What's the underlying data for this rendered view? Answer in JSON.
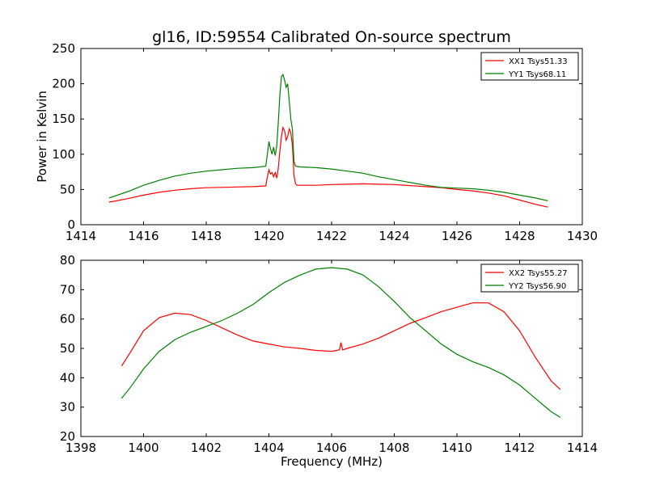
{
  "figure": {
    "title": "gl16, ID:59554 Calibrated On-source spectrum",
    "ylabel": "Power in Kelvin",
    "xlabel": "Frequency (MHz)"
  },
  "chart_data": [
    {
      "type": "line",
      "xlim": [
        1414,
        1430
      ],
      "ylim": [
        0,
        250
      ],
      "xticks": [
        1414,
        1416,
        1418,
        1420,
        1422,
        1424,
        1426,
        1428,
        1430
      ],
      "yticks": [
        0,
        50,
        100,
        150,
        200,
        250
      ],
      "legend_position": "top-right",
      "series": [
        {
          "name": "XX1 Tsys51.33",
          "color": "#ff0000",
          "points": [
            [
              1414.9,
              32
            ],
            [
              1415.5,
              37
            ],
            [
              1416.0,
              42
            ],
            [
              1416.5,
              46
            ],
            [
              1417.0,
              49
            ],
            [
              1417.5,
              51
            ],
            [
              1418.0,
              52.5
            ],
            [
              1418.5,
              53
            ],
            [
              1419.0,
              53.5
            ],
            [
              1419.5,
              54
            ],
            [
              1419.9,
              55
            ],
            [
              1419.95,
              68
            ],
            [
              1420.0,
              78
            ],
            [
              1420.05,
              72
            ],
            [
              1420.1,
              74
            ],
            [
              1420.15,
              68
            ],
            [
              1420.2,
              74
            ],
            [
              1420.25,
              66
            ],
            [
              1420.3,
              80
            ],
            [
              1420.35,
              105
            ],
            [
              1420.4,
              125
            ],
            [
              1420.45,
              138
            ],
            [
              1420.5,
              133
            ],
            [
              1420.55,
              120
            ],
            [
              1420.6,
              125
            ],
            [
              1420.65,
              136
            ],
            [
              1420.7,
              130
            ],
            [
              1420.75,
              112
            ],
            [
              1420.8,
              70
            ],
            [
              1420.85,
              58
            ],
            [
              1420.9,
              56
            ],
            [
              1421.5,
              56
            ],
            [
              1422.0,
              57
            ],
            [
              1422.5,
              57.5
            ],
            [
              1423.0,
              58
            ],
            [
              1423.5,
              57.5
            ],
            [
              1424.0,
              57
            ],
            [
              1424.5,
              55.5
            ],
            [
              1425.0,
              54
            ],
            [
              1425.5,
              52.5
            ],
            [
              1426.0,
              50
            ],
            [
              1426.5,
              48
            ],
            [
              1427.0,
              45
            ],
            [
              1427.5,
              41
            ],
            [
              1428.0,
              35
            ],
            [
              1428.5,
              29
            ],
            [
              1428.9,
              25
            ]
          ]
        },
        {
          "name": "YY1 Tsys68.11",
          "color": "#008000",
          "points": [
            [
              1414.9,
              38
            ],
            [
              1415.5,
              47
            ],
            [
              1416.0,
              56
            ],
            [
              1416.5,
              63
            ],
            [
              1417.0,
              69
            ],
            [
              1417.5,
              73
            ],
            [
              1418.0,
              76
            ],
            [
              1418.5,
              78
            ],
            [
              1419.0,
              80
            ],
            [
              1419.5,
              81
            ],
            [
              1419.9,
              83
            ],
            [
              1419.95,
              100
            ],
            [
              1420.0,
              118
            ],
            [
              1420.05,
              108
            ],
            [
              1420.1,
              100
            ],
            [
              1420.15,
              110
            ],
            [
              1420.2,
              98
            ],
            [
              1420.25,
              112
            ],
            [
              1420.3,
              145
            ],
            [
              1420.35,
              185
            ],
            [
              1420.4,
              210
            ],
            [
              1420.45,
              213
            ],
            [
              1420.5,
              205
            ],
            [
              1420.55,
              195
            ],
            [
              1420.6,
              200
            ],
            [
              1420.65,
              175
            ],
            [
              1420.7,
              150
            ],
            [
              1420.75,
              135
            ],
            [
              1420.8,
              90
            ],
            [
              1420.85,
              83
            ],
            [
              1421.0,
              82
            ],
            [
              1421.5,
              81
            ],
            [
              1422.0,
              79
            ],
            [
              1422.5,
              76
            ],
            [
              1423.0,
              73
            ],
            [
              1423.5,
              68
            ],
            [
              1424.0,
              64
            ],
            [
              1424.5,
              60
            ],
            [
              1425.0,
              56
            ],
            [
              1425.5,
              53
            ],
            [
              1426.0,
              52
            ],
            [
              1426.5,
              51
            ],
            [
              1427.0,
              49
            ],
            [
              1427.5,
              46
            ],
            [
              1428.0,
              42
            ],
            [
              1428.5,
              38
            ],
            [
              1428.9,
              34
            ]
          ]
        }
      ]
    },
    {
      "type": "line",
      "xlim": [
        1398,
        1414
      ],
      "ylim": [
        20,
        80
      ],
      "xticks": [
        1398,
        1400,
        1402,
        1404,
        1406,
        1408,
        1410,
        1412,
        1414
      ],
      "yticks": [
        20,
        30,
        40,
        50,
        60,
        70,
        80
      ],
      "legend_position": "top-right",
      "series": [
        {
          "name": "XX2 Tsys55.27",
          "color": "#ff0000",
          "points": [
            [
              1399.3,
              44
            ],
            [
              1399.6,
              49
            ],
            [
              1400.0,
              56
            ],
            [
              1400.5,
              60.5
            ],
            [
              1401.0,
              62
            ],
            [
              1401.5,
              61.5
            ],
            [
              1402.0,
              59.5
            ],
            [
              1402.5,
              57
            ],
            [
              1403.0,
              54.5
            ],
            [
              1403.5,
              52.5
            ],
            [
              1404.0,
              51.5
            ],
            [
              1404.5,
              50.5
            ],
            [
              1405.0,
              50
            ],
            [
              1405.5,
              49.3
            ],
            [
              1406.0,
              49
            ],
            [
              1406.25,
              49.5
            ],
            [
              1406.3,
              52
            ],
            [
              1406.35,
              49.5
            ],
            [
              1406.5,
              50
            ],
            [
              1407.0,
              51.5
            ],
            [
              1407.5,
              53.5
            ],
            [
              1408.0,
              56
            ],
            [
              1408.5,
              58.5
            ],
            [
              1409.0,
              60.5
            ],
            [
              1409.5,
              62.5
            ],
            [
              1410.0,
              64
            ],
            [
              1410.5,
              65.5
            ],
            [
              1411.0,
              65.5
            ],
            [
              1411.5,
              62.5
            ],
            [
              1412.0,
              56
            ],
            [
              1412.5,
              47
            ],
            [
              1413.0,
              39
            ],
            [
              1413.3,
              36
            ]
          ]
        },
        {
          "name": "YY2 Tsys56.90",
          "color": "#008000",
          "points": [
            [
              1399.3,
              33
            ],
            [
              1399.6,
              37
            ],
            [
              1400.0,
              43
            ],
            [
              1400.5,
              49
            ],
            [
              1401.0,
              53
            ],
            [
              1401.5,
              55.5
            ],
            [
              1402.0,
              57.5
            ],
            [
              1402.5,
              59.5
            ],
            [
              1403.0,
              62
            ],
            [
              1403.5,
              65
            ],
            [
              1404.0,
              69
            ],
            [
              1404.5,
              72.5
            ],
            [
              1405.0,
              75
            ],
            [
              1405.5,
              77
            ],
            [
              1406.0,
              77.5
            ],
            [
              1406.5,
              77
            ],
            [
              1407.0,
              75
            ],
            [
              1407.5,
              71
            ],
            [
              1408.0,
              66
            ],
            [
              1408.5,
              60.5
            ],
            [
              1409.0,
              56
            ],
            [
              1409.5,
              51.5
            ],
            [
              1410.0,
              48
            ],
            [
              1410.5,
              45.5
            ],
            [
              1411.0,
              43.5
            ],
            [
              1411.5,
              41
            ],
            [
              1412.0,
              37.5
            ],
            [
              1412.5,
              33
            ],
            [
              1413.0,
              28.5
            ],
            [
              1413.3,
              26.5
            ]
          ]
        }
      ]
    }
  ]
}
